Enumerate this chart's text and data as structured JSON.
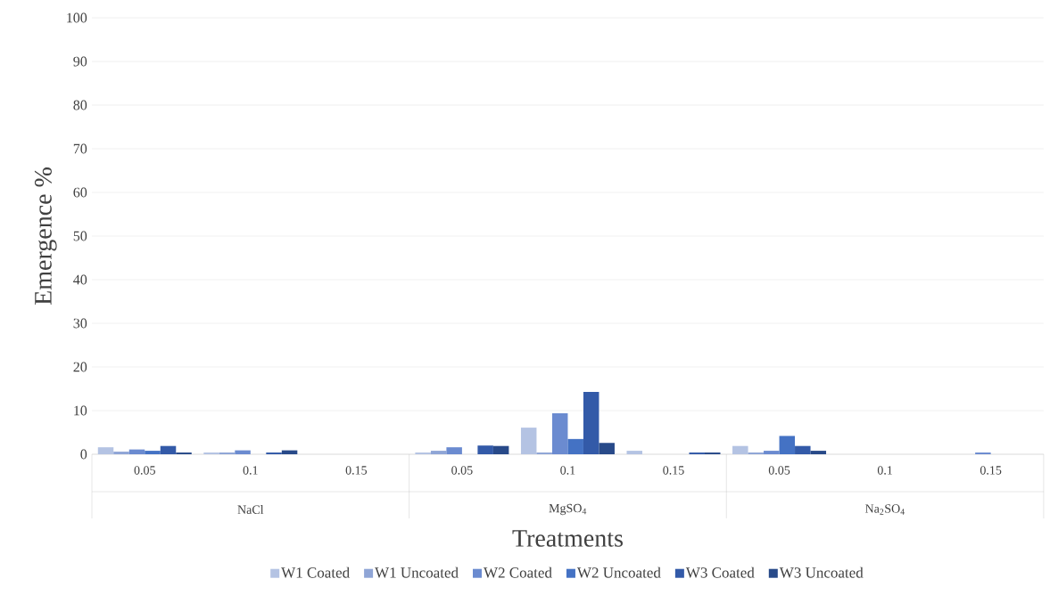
{
  "chart_data": {
    "type": "bar",
    "xlabel": "Treatments",
    "ylabel": "Emergence %",
    "categories": [
      "0.05",
      "0.1",
      "0.15",
      "0.05",
      "0.1",
      "0.15",
      "0.05",
      "0.1",
      "0.15"
    ],
    "annotations": [
      "NaCl",
      "MgSO$_{4}$",
      "Na$_{2}$SO$_{4}$"
    ],
    "series": [
      {
        "name": "W1 Coated",
        "color": "#b4c3e3",
        "values": [
          1.6,
          0.4,
          0,
          0.4,
          6.1,
          0.8,
          1.9,
          0,
          0
        ]
      },
      {
        "name": "W1 Uncoated",
        "color": "#8fa5d6",
        "values": [
          0.6,
          0.4,
          0,
          0.8,
          0.4,
          0,
          0.4,
          0,
          0
        ]
      },
      {
        "name": "W2 Coated",
        "color": "#6b8bd0",
        "values": [
          1.1,
          0.9,
          0,
          1.6,
          9.4,
          0,
          0.8,
          0,
          0.4
        ]
      },
      {
        "name": "W2 Uncoated",
        "color": "#4472c4",
        "values": [
          0.8,
          0,
          0,
          0,
          3.5,
          0,
          4.2,
          0,
          0
        ]
      },
      {
        "name": "W3 Coated",
        "color": "#335aa8",
        "values": [
          1.9,
          0.4,
          0,
          2.0,
          14.3,
          0.4,
          1.9,
          0,
          0
        ]
      },
      {
        "name": "W3 Uncoated",
        "color": "#284a89",
        "values": [
          0.4,
          0.9,
          0,
          1.9,
          2.6,
          0.4,
          0.8,
          0,
          0
        ]
      }
    ],
    "ylim": [
      0,
      100
    ],
    "yticks": [
      0,
      10,
      20,
      30,
      40,
      50,
      60,
      70,
      80,
      90,
      100
    ],
    "grid": "y",
    "legend": "bottom"
  }
}
